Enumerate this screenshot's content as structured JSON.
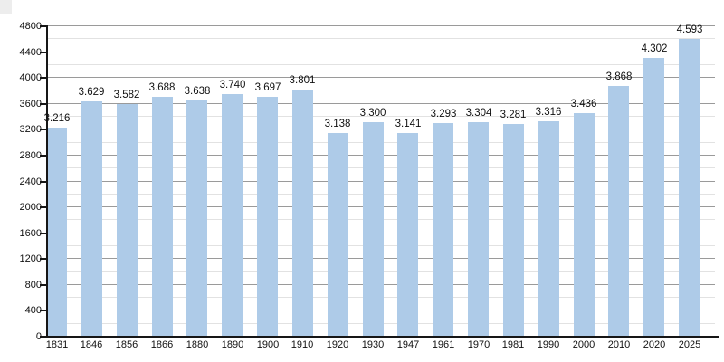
{
  "chart_data": {
    "type": "bar",
    "title": "",
    "xlabel": "",
    "ylabel": "",
    "categories": [
      "1831",
      "1846",
      "1856",
      "1866",
      "1880",
      "1890",
      "1900",
      "1910",
      "1920",
      "1930",
      "1947",
      "1961",
      "1970",
      "1981",
      "1990",
      "2000",
      "2010",
      "2020",
      "2025"
    ],
    "values": [
      3216,
      3629,
      3582,
      3688,
      3638,
      3740,
      3697,
      3801,
      3138,
      3300,
      3141,
      3293,
      3304,
      3281,
      3316,
      3436,
      3868,
      4302,
      4593
    ],
    "value_labels": [
      "3.216",
      "3.629",
      "3.582",
      "3.688",
      "3.638",
      "3.740",
      "3.697",
      "3.801",
      "3.138",
      "3.300",
      "3.141",
      "3.293",
      "3.304",
      "3.281",
      "3.316",
      "3.436",
      "3.868",
      "4.302",
      "4.593"
    ],
    "ylim": [
      0,
      4800
    ],
    "y_major_step": 400,
    "y_minor_step": 200,
    "y_tick_labels": [
      "0",
      "400",
      "800",
      "1200",
      "1600",
      "2000",
      "2400",
      "2800",
      "3200",
      "3600",
      "4000",
      "4400",
      "4800"
    ],
    "grid": "major-and-minor",
    "legend": "none",
    "colors": {
      "bar_fill": "#AECBE8",
      "grid_major": "#9a9a9a",
      "grid_minor": "#e2e2e2",
      "axis": "#161616",
      "text": "#111111",
      "background": "#ffffff"
    }
  }
}
